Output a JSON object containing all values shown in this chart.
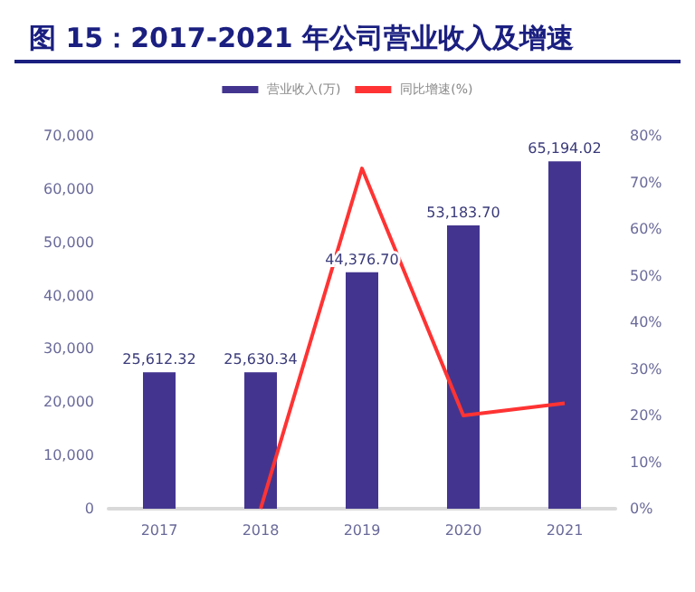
{
  "chart_data": {
    "type": "bar",
    "title": "图 15：2017-2021 年公司营业收入及增速",
    "categories": [
      "2017",
      "2018",
      "2019",
      "2020",
      "2021"
    ],
    "series": [
      {
        "name": "营业收入(万)",
        "color": "#43358f",
        "values": [
          25612.32,
          25630.34,
          44376.7,
          53183.7,
          65194.02
        ],
        "value_labels": [
          "25,612.32",
          "25,630.34",
          "44,376.70",
          "53,183.70",
          "65,194.02"
        ]
      },
      {
        "name": "同比增速(%)",
        "type": "line",
        "axis": "y2",
        "color": "#ff3333",
        "values": [
          null,
          0,
          73,
          20,
          22.6
        ]
      }
    ],
    "ylim": [
      0,
      70000
    ],
    "yticks": [
      {
        "value": 0,
        "label": "0"
      },
      {
        "value": 10000,
        "label": "10,000"
      },
      {
        "value": 20000,
        "label": "20,000"
      },
      {
        "value": 30000,
        "label": "30,000"
      },
      {
        "value": 40000,
        "label": "40,000"
      },
      {
        "value": 50000,
        "label": "50,000"
      },
      {
        "value": 60000,
        "label": "60,000"
      },
      {
        "value": 70000,
        "label": "70,000"
      }
    ],
    "y2lim": [
      0,
      80
    ],
    "y2ticks": [
      {
        "value": 0,
        "label": "0%"
      },
      {
        "value": 10,
        "label": "10%"
      },
      {
        "value": 20,
        "label": "20%"
      },
      {
        "value": 30,
        "label": "30%"
      },
      {
        "value": 40,
        "label": "40%"
      },
      {
        "value": 50,
        "label": "50%"
      },
      {
        "value": 60,
        "label": "60%"
      },
      {
        "value": 70,
        "label": "70%"
      },
      {
        "value": 80,
        "label": "80%"
      }
    ],
    "grid": false,
    "legend": "top",
    "marker": "none",
    "line_style": "solid"
  }
}
